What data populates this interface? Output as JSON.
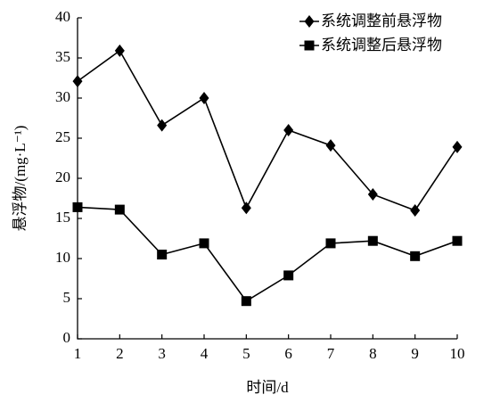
{
  "chart_data": {
    "type": "line",
    "x": [
      1,
      2,
      3,
      4,
      5,
      6,
      7,
      8,
      9,
      10
    ],
    "xlim": [
      1,
      10
    ],
    "xticks": [
      1,
      2,
      3,
      4,
      5,
      6,
      7,
      8,
      9,
      10
    ],
    "ylim": [
      0,
      40
    ],
    "yticks": [
      0,
      5,
      10,
      15,
      20,
      25,
      30,
      35,
      40
    ],
    "xlabel": "时间/d",
    "ylabel": "悬浮物/(mg·L⁻¹)",
    "legend": "upper right",
    "grid": false,
    "series": [
      {
        "name": "系统调整前悬浮物",
        "color": "#000000",
        "marker": "diamond",
        "values": [
          32.1,
          35.9,
          26.6,
          30.0,
          16.3,
          26.0,
          24.1,
          18.0,
          16.0,
          23.9
        ]
      },
      {
        "name": "系统调整后悬浮物",
        "color": "#000000",
        "marker": "square",
        "values": [
          16.4,
          16.1,
          10.5,
          11.9,
          4.7,
          7.9,
          11.9,
          12.2,
          10.3,
          12.2
        ]
      }
    ]
  }
}
